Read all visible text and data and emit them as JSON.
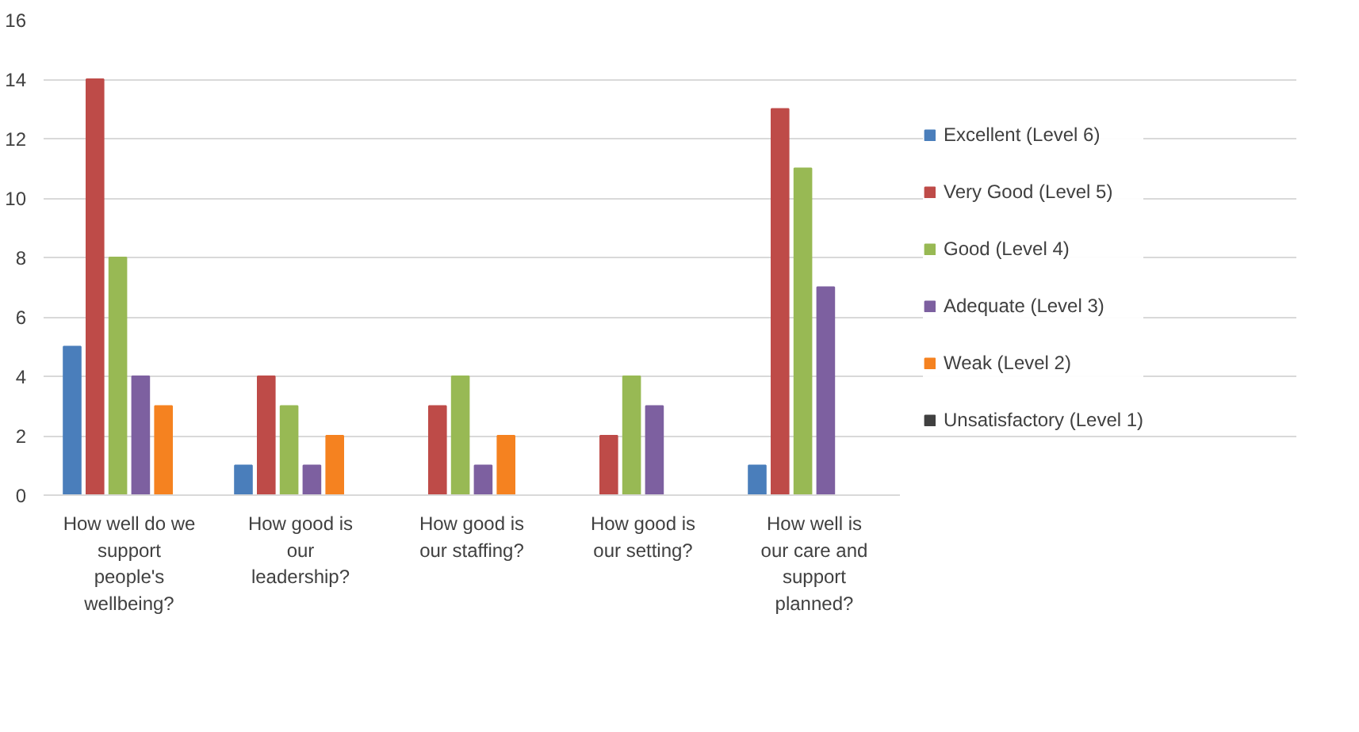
{
  "chart_data": {
    "type": "bar",
    "categories": [
      "How well do we support people's wellbeing?",
      "How good is our leadership?",
      "How good is our staffing?",
      "How good is our setting?",
      "How well is our care and support planned?"
    ],
    "series": [
      {
        "name": "Excellent (Level 6)",
        "color": "#4a7ebb",
        "values": [
          5,
          1,
          0,
          0,
          1
        ]
      },
      {
        "name": "Very Good (Level 5)",
        "color": "#be4b48",
        "values": [
          14,
          4,
          3,
          2,
          13
        ]
      },
      {
        "name": "Good (Level 4)",
        "color": "#98b954",
        "values": [
          8,
          3,
          4,
          4,
          11
        ]
      },
      {
        "name": "Adequate (Level 3)",
        "color": "#7d60a0",
        "values": [
          4,
          1,
          1,
          3,
          7
        ]
      },
      {
        "name": "Weak (Level 2)",
        "color": "#f58220",
        "values": [
          3,
          2,
          2,
          0,
          0
        ]
      },
      {
        "name": "Unsatisfactory (Level 1)",
        "color": "#404040",
        "values": [
          0,
          0,
          0,
          0,
          0
        ]
      }
    ],
    "ylim": [
      0,
      16
    ],
    "yticks": [
      0,
      2,
      4,
      6,
      8,
      10,
      12,
      14,
      16
    ],
    "grid": "y",
    "legend": "right"
  }
}
